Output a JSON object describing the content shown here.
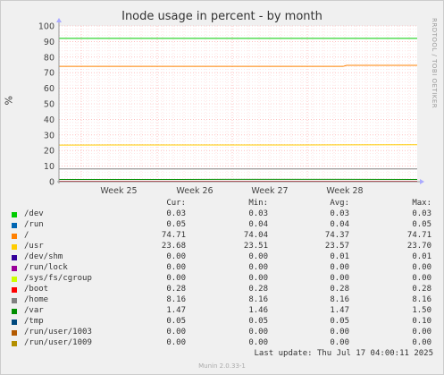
{
  "chart_data": {
    "type": "line",
    "title": "Inode usage in percent - by month",
    "ylabel": "%",
    "ylim": [
      0,
      100
    ],
    "yticks": [
      0,
      10,
      20,
      30,
      40,
      50,
      60,
      70,
      80,
      90,
      100
    ],
    "xlabels": [
      "Week 25",
      "Week 26",
      "Week 27",
      "Week 28"
    ],
    "side_text": "RRDTOOL / TOBI OETIKER",
    "columns": [
      "Cur:",
      "Min:",
      "Avg:",
      "Max:"
    ],
    "series": [
      {
        "name": "/dev",
        "color": "#00cc00",
        "cur": "0.03",
        "min": "0.03",
        "avg": "0.03",
        "max": "0.03",
        "values": [
          0.03,
          0.03
        ]
      },
      {
        "name": "/run",
        "color": "#0066b3",
        "cur": "0.05",
        "min": "0.04",
        "avg": "0.04",
        "max": "0.05",
        "values": [
          0.04,
          0.05
        ]
      },
      {
        "name": "/",
        "color": "#ff8000",
        "cur": "74.71",
        "min": "74.04",
        "avg": "74.37",
        "max": "74.71",
        "values": [
          74.1,
          74.04,
          74.04,
          74.71,
          74.71
        ]
      },
      {
        "name": "/usr",
        "color": "#ffcc00",
        "cur": "23.68",
        "min": "23.51",
        "avg": "23.57",
        "max": "23.70",
        "values": [
          23.51,
          23.55,
          23.6,
          23.68
        ]
      },
      {
        "name": "/dev/shm",
        "color": "#330099",
        "cur": "0.00",
        "min": "0.00",
        "avg": "0.01",
        "max": "0.01",
        "values": [
          0.0,
          0.0
        ]
      },
      {
        "name": "/run/lock",
        "color": "#990099",
        "cur": "0.00",
        "min": "0.00",
        "avg": "0.00",
        "max": "0.00",
        "values": [
          0.0,
          0.0
        ]
      },
      {
        "name": "/sys/fs/cgroup",
        "color": "#ccff00",
        "cur": "0.00",
        "min": "0.00",
        "avg": "0.00",
        "max": "0.00",
        "values": [
          0.0,
          0.0
        ]
      },
      {
        "name": "/boot",
        "color": "#ff0000",
        "cur": "0.28",
        "min": "0.28",
        "avg": "0.28",
        "max": "0.28",
        "values": [
          0.28,
          0.28
        ]
      },
      {
        "name": "/home",
        "color": "#808080",
        "cur": "8.16",
        "min": "8.16",
        "avg": "8.16",
        "max": "8.16",
        "values": [
          8.16,
          8.16
        ]
      },
      {
        "name": "/var",
        "color": "#008f00",
        "cur": "1.47",
        "min": "1.46",
        "avg": "1.47",
        "max": "1.50",
        "values": [
          1.46,
          1.47,
          1.5,
          1.47
        ]
      },
      {
        "name": "/tmp",
        "color": "#00487d",
        "cur": "0.05",
        "min": "0.05",
        "avg": "0.05",
        "max": "0.10",
        "values": [
          0.05,
          0.05
        ]
      },
      {
        "name": "/run/user/1003",
        "color": "#b35a00",
        "cur": "0.00",
        "min": "0.00",
        "avg": "0.00",
        "max": "0.00",
        "values": [
          0.0,
          0.0
        ]
      },
      {
        "name": "/run/user/1009",
        "color": "#b38f00",
        "cur": "0.00",
        "min": "0.00",
        "avg": "0.00",
        "max": "0.00",
        "values": [
          0.0,
          0.0
        ]
      }
    ],
    "green_line": 92,
    "last_update": "Last update: Thu Jul 17 04:00:11 2025",
    "footer": "Munin 2.0.33-1"
  }
}
